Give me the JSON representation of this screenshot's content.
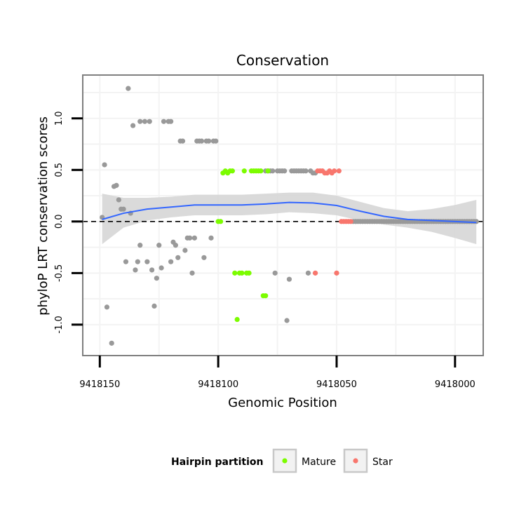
{
  "chart_data": {
    "type": "scatter",
    "title": "Conservation",
    "xlabel": "Genomic Position",
    "ylabel": "phyloP LRT conservation scores",
    "x_reversed": true,
    "xlim": [
      9418157.2,
      9417988.1
    ],
    "ylim": [
      -1.3,
      1.42
    ],
    "x_ticks": [
      9418150,
      9418100,
      9418050,
      9418000
    ],
    "x_tick_labels": [
      "9418150",
      "9418100",
      "9418050",
      "9418000"
    ],
    "y_ticks": [
      -1.0,
      -0.5,
      0.0,
      0.5,
      1.0
    ],
    "y_tick_labels": [
      "-1.0",
      "-0.5",
      "0.0",
      "0.5",
      "1.0"
    ],
    "reference_line": {
      "y": 0,
      "style": "dashed"
    },
    "legend": {
      "title": "Hairpin partition",
      "position": "bottom",
      "entries": [
        {
          "label": "Mature",
          "color": "#7cfc00"
        },
        {
          "label": "Star",
          "color": "#f8766d"
        }
      ]
    },
    "colors": {
      "other": "#999999",
      "smooth_line": "#3366ff",
      "ribbon": "#d6d6d6",
      "grid": "#f3f3f3",
      "panel_border": "#7f7f7f"
    },
    "series": [
      {
        "name": "Other",
        "color": "#999999",
        "points": [
          [
            9418149,
            0.04
          ],
          [
            9418148,
            0.55
          ],
          [
            9418147,
            -0.83
          ],
          [
            9418145,
            -1.18
          ],
          [
            9418144,
            0.34
          ],
          [
            9418143,
            0.35
          ],
          [
            9418142,
            0.21
          ],
          [
            9418141,
            0.12
          ],
          [
            9418140,
            0.12
          ],
          [
            9418139,
            -0.39
          ],
          [
            9418138,
            1.29
          ],
          [
            9418137,
            0.08
          ],
          [
            9418136,
            0.93
          ],
          [
            9418135,
            -0.47
          ],
          [
            9418134,
            -0.39
          ],
          [
            9418133,
            -0.23
          ],
          [
            9418133,
            0.97
          ],
          [
            9418131,
            0.97
          ],
          [
            9418130,
            -0.39
          ],
          [
            9418129,
            0.97
          ],
          [
            9418128,
            -0.47
          ],
          [
            9418127,
            -0.82
          ],
          [
            9418126,
            -0.55
          ],
          [
            9418125,
            -0.23
          ],
          [
            9418124,
            -0.45
          ],
          [
            9418123,
            0.97
          ],
          [
            9418121,
            0.97
          ],
          [
            9418120,
            -0.39
          ],
          [
            9418120,
            0.97
          ],
          [
            9418119,
            -0.2
          ],
          [
            9418118,
            -0.23
          ],
          [
            9418117,
            -0.35
          ],
          [
            9418116,
            0.78
          ],
          [
            9418115,
            0.78
          ],
          [
            9418114,
            -0.28
          ],
          [
            9418113,
            -0.16
          ],
          [
            9418112,
            -0.16
          ],
          [
            9418111,
            -0.5
          ],
          [
            9418110,
            -0.16
          ],
          [
            9418109,
            0.78
          ],
          [
            9418108,
            0.78
          ],
          [
            9418107,
            0.78
          ],
          [
            9418106,
            -0.35
          ],
          [
            9418105,
            0.78
          ],
          [
            9418104,
            0.78
          ],
          [
            9418103,
            -0.16
          ],
          [
            9418102,
            0.78
          ],
          [
            9418101,
            0.78
          ],
          [
            9418080,
            0.49
          ],
          [
            9418079,
            0.49
          ],
          [
            9418078,
            0.49
          ],
          [
            9418077,
            0.49
          ],
          [
            9418076,
            -0.5
          ],
          [
            9418075,
            0.49
          ],
          [
            9418074,
            0.49
          ],
          [
            9418073,
            0.49
          ],
          [
            9418072,
            0.49
          ],
          [
            9418071,
            -0.96
          ],
          [
            9418070,
            -0.56
          ],
          [
            9418069,
            0.49
          ],
          [
            9418068,
            0.49
          ],
          [
            9418067,
            0.49
          ],
          [
            9418066,
            0.49
          ],
          [
            9418065,
            0.49
          ],
          [
            9418064,
            0.49
          ],
          [
            9418063,
            0.49
          ],
          [
            9418062,
            -0.5
          ],
          [
            9418061,
            0.49
          ],
          [
            9418060,
            0.47
          ],
          [
            9418059,
            0.47
          ],
          [
            9418043,
            0.0
          ],
          [
            9418042,
            0.0
          ],
          [
            9418041,
            0.0
          ],
          [
            9418040,
            0.0
          ],
          [
            9418039,
            0.0
          ],
          [
            9418038,
            0.0
          ],
          [
            9418037,
            0.0
          ],
          [
            9418036,
            0.0
          ],
          [
            9418035,
            0.0
          ],
          [
            9418034,
            0.0
          ],
          [
            9418033,
            0.0
          ],
          [
            9418032,
            0.0
          ],
          [
            9418031,
            0.0
          ],
          [
            9418030,
            0.0
          ],
          [
            9418029,
            0.0
          ],
          [
            9418028,
            0.0
          ],
          [
            9418027,
            0.0
          ],
          [
            9418026,
            0.0
          ],
          [
            9418025,
            0.0
          ],
          [
            9418024,
            0.0
          ],
          [
            9418023,
            0.0
          ],
          [
            9418022,
            0.0
          ],
          [
            9418021,
            0.0
          ],
          [
            9418020,
            0.0
          ],
          [
            9418019,
            0.0
          ],
          [
            9418018,
            0.0
          ],
          [
            9418017,
            0.0
          ],
          [
            9418016,
            0.0
          ],
          [
            9418015,
            0.0
          ],
          [
            9418014,
            0.0
          ],
          [
            9418013,
            0.0
          ],
          [
            9418012,
            0.0
          ],
          [
            9418011,
            0.0
          ],
          [
            9418010,
            0.0
          ],
          [
            9418009,
            0.0
          ],
          [
            9418008,
            0.0
          ],
          [
            9418007,
            0.0
          ],
          [
            9418006,
            0.0
          ],
          [
            9418005,
            0.0
          ],
          [
            9418004,
            0.0
          ],
          [
            9418003,
            0.0
          ],
          [
            9418002,
            0.0
          ],
          [
            9418001,
            0.0
          ],
          [
            9418000,
            0.0
          ],
          [
            9417999,
            0.0
          ],
          [
            9417998,
            0.0
          ],
          [
            9417997,
            0.0
          ],
          [
            9417996,
            0.0
          ],
          [
            9417995,
            0.0
          ],
          [
            9417994,
            0.0
          ],
          [
            9417993,
            0.0
          ],
          [
            9417992,
            0.0
          ],
          [
            9417991,
            0.0
          ]
        ]
      },
      {
        "name": "Mature",
        "color": "#7cfc00",
        "points": [
          [
            9418100,
            0.0
          ],
          [
            9418099,
            0.0
          ],
          [
            9418098,
            0.47
          ],
          [
            9418097,
            0.49
          ],
          [
            9418096,
            0.47
          ],
          [
            9418095,
            0.49
          ],
          [
            9418094,
            0.49
          ],
          [
            9418093,
            -0.5
          ],
          [
            9418092,
            -0.95
          ],
          [
            9418091,
            -0.5
          ],
          [
            9418090,
            -0.5
          ],
          [
            9418089,
            0.49
          ],
          [
            9418088,
            -0.5
          ],
          [
            9418087,
            -0.5
          ],
          [
            9418086,
            0.49
          ],
          [
            9418085,
            0.49
          ],
          [
            9418084,
            0.49
          ],
          [
            9418083,
            0.49
          ],
          [
            9418082,
            0.49
          ],
          [
            9418081,
            -0.72
          ],
          [
            9418080,
            -0.72
          ],
          [
            9418079,
            0.49
          ]
        ]
      },
      {
        "name": "Star",
        "color": "#f8766d",
        "points": [
          [
            9418059,
            -0.5
          ],
          [
            9418058,
            0.49
          ],
          [
            9418057,
            0.49
          ],
          [
            9418056,
            0.49
          ],
          [
            9418055,
            0.47
          ],
          [
            9418054,
            0.47
          ],
          [
            9418053,
            0.49
          ],
          [
            9418052,
            0.47
          ],
          [
            9418051,
            0.49
          ],
          [
            9418050,
            -0.5
          ],
          [
            9418049,
            0.49
          ],
          [
            9418048,
            0.0
          ],
          [
            9418047,
            0.0
          ],
          [
            9418046,
            0.0
          ],
          [
            9418045,
            0.0
          ],
          [
            9418044,
            0.0
          ]
        ]
      }
    ],
    "smooth": [
      {
        "x": 9418149,
        "y": 0.02,
        "lo": -0.22,
        "hi": 0.27
      },
      {
        "x": 9418140,
        "y": 0.08,
        "lo": -0.06,
        "hi": 0.23
      },
      {
        "x": 9418130,
        "y": 0.12,
        "lo": 0.01,
        "hi": 0.23
      },
      {
        "x": 9418120,
        "y": 0.14,
        "lo": 0.04,
        "hi": 0.24
      },
      {
        "x": 9418110,
        "y": 0.16,
        "lo": 0.06,
        "hi": 0.26
      },
      {
        "x": 9418100,
        "y": 0.16,
        "lo": 0.06,
        "hi": 0.26
      },
      {
        "x": 9418090,
        "y": 0.16,
        "lo": 0.06,
        "hi": 0.26
      },
      {
        "x": 9418080,
        "y": 0.17,
        "lo": 0.07,
        "hi": 0.27
      },
      {
        "x": 9418070,
        "y": 0.185,
        "lo": 0.09,
        "hi": 0.28
      },
      {
        "x": 9418060,
        "y": 0.18,
        "lo": 0.08,
        "hi": 0.28
      },
      {
        "x": 9418050,
        "y": 0.155,
        "lo": 0.06,
        "hi": 0.25
      },
      {
        "x": 9418040,
        "y": 0.1,
        "lo": 0.01,
        "hi": 0.19
      },
      {
        "x": 9418030,
        "y": 0.05,
        "lo": -0.03,
        "hi": 0.13
      },
      {
        "x": 9418020,
        "y": 0.02,
        "lo": -0.06,
        "hi": 0.1
      },
      {
        "x": 9418010,
        "y": 0.01,
        "lo": -0.1,
        "hi": 0.12
      },
      {
        "x": 9418000,
        "y": 0.0,
        "lo": -0.16,
        "hi": 0.16
      },
      {
        "x": 9417991,
        "y": -0.01,
        "lo": -0.22,
        "hi": 0.21
      }
    ]
  }
}
